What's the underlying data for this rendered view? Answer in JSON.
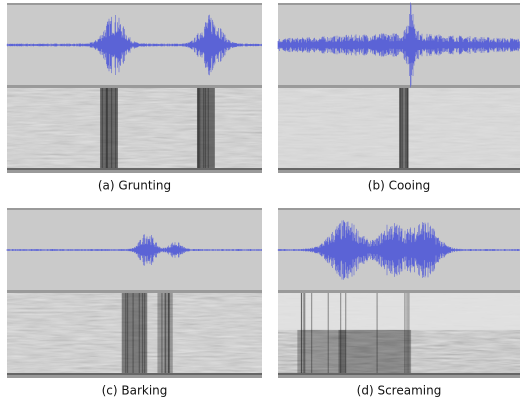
{
  "panels": [
    {
      "caption": "(a) Grunting"
    },
    {
      "caption": "(b) Cooing"
    },
    {
      "caption": "(c) Barking"
    },
    {
      "caption": "(d) Screaming"
    }
  ]
}
